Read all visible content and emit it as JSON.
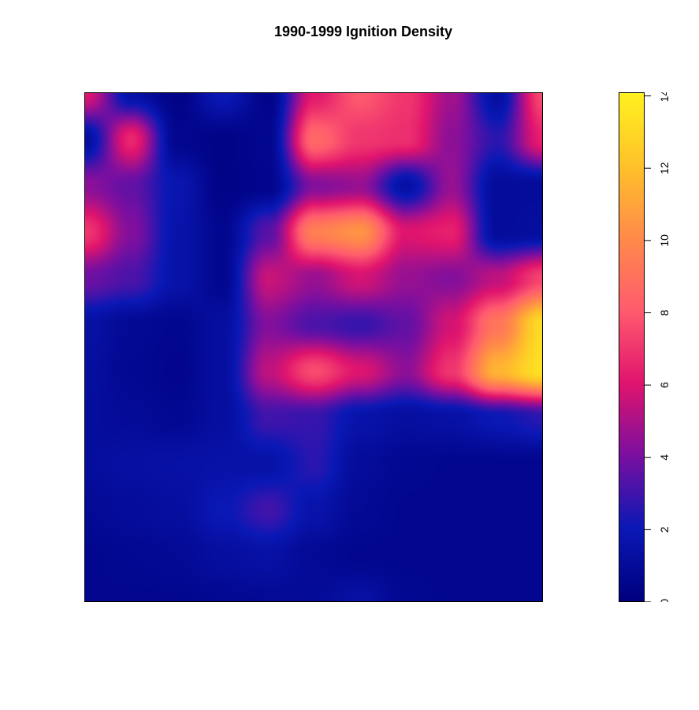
{
  "chart_data": {
    "type": "heatmap",
    "title": "1990-1999 Ignition Density",
    "xlabel": "",
    "ylabel": "",
    "colorbar": {
      "min": 0,
      "max": 14.1,
      "ticks": [
        0,
        2,
        4,
        6,
        8,
        10,
        12,
        14
      ],
      "tick_labels": [
        "0",
        "2",
        "4",
        "6",
        "8",
        "10",
        "12",
        "14"
      ],
      "colors": [
        "#00007f",
        "#0a18b5",
        "#7a0fa0",
        "#e0146e",
        "#ff5b6e",
        "#ff8a4a",
        "#ffc22a",
        "#fff11f"
      ]
    },
    "grid": {
      "rows": 12,
      "cols": 11,
      "values": [
        [
          6.0,
          1.4,
          0.3,
          2.0,
          0.4,
          6.2,
          8.0,
          7.0,
          4.8,
          1.2,
          7.6
        ],
        [
          1.2,
          6.6,
          0.6,
          0.3,
          0.6,
          8.6,
          7.0,
          6.8,
          4.4,
          2.6,
          6.4
        ],
        [
          4.4,
          3.6,
          1.8,
          0.3,
          0.5,
          4.2,
          4.6,
          1.4,
          4.6,
          1.0,
          1.0
        ],
        [
          7.0,
          4.2,
          1.6,
          0.6,
          3.4,
          9.6,
          10.4,
          6.0,
          6.4,
          1.0,
          1.2
        ],
        [
          3.8,
          3.2,
          1.6,
          0.6,
          5.6,
          4.6,
          5.8,
          4.6,
          4.2,
          5.4,
          7.4
        ],
        [
          1.4,
          0.8,
          0.6,
          1.2,
          4.2,
          3.2,
          2.8,
          3.6,
          5.8,
          9.2,
          13.2
        ],
        [
          1.2,
          0.7,
          0.5,
          1.2,
          5.4,
          7.6,
          6.0,
          4.4,
          7.0,
          11.6,
          13.4
        ],
        [
          1.1,
          0.9,
          0.7,
          1.2,
          3.0,
          2.8,
          1.6,
          1.2,
          1.4,
          2.0,
          2.6
        ],
        [
          1.1,
          1.3,
          1.4,
          1.5,
          1.5,
          2.6,
          1.0,
          0.7,
          0.6,
          0.6,
          0.6
        ],
        [
          0.8,
          1.0,
          1.2,
          2.0,
          3.0,
          1.6,
          0.8,
          0.6,
          0.6,
          0.6,
          0.6
        ],
        [
          0.6,
          0.7,
          0.8,
          1.2,
          1.4,
          0.8,
          0.6,
          0.6,
          0.6,
          0.6,
          0.6
        ],
        [
          0.6,
          0.6,
          0.6,
          0.7,
          0.8,
          0.9,
          1.4,
          0.7,
          0.6,
          0.6,
          0.6
        ]
      ]
    }
  }
}
